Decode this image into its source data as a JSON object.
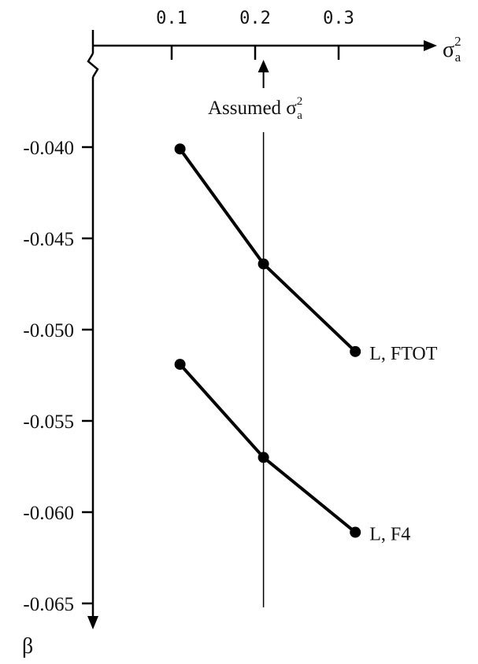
{
  "chart_data": {
    "type": "line",
    "x_axis": {
      "label": "σ",
      "label_sup": "2",
      "label_sub": "a",
      "position": "top",
      "ticks": [
        0.1,
        0.2,
        0.3
      ],
      "tick_labels": [
        "0.1",
        "0.2",
        "0.3"
      ]
    },
    "y_axis": {
      "label": "β",
      "direction": "downward",
      "ticks": [
        -0.04,
        -0.045,
        -0.05,
        -0.055,
        -0.06,
        -0.065
      ],
      "tick_labels": [
        "-0.040",
        "-0.045",
        "-0.050",
        "-0.055",
        "-0.060",
        "-0.065"
      ]
    },
    "reference_line": {
      "x": 0.21,
      "label": "Assumed σ",
      "label_sup": "2",
      "label_sub": "a"
    },
    "series": [
      {
        "name": "L, FTOT",
        "x": [
          0.11,
          0.21,
          0.32
        ],
        "y": [
          -0.0401,
          -0.0464,
          -0.0512
        ]
      },
      {
        "name": "L, F4",
        "x": [
          0.11,
          0.21,
          0.32
        ],
        "y": [
          -0.0519,
          -0.057,
          -0.0611
        ]
      }
    ]
  }
}
